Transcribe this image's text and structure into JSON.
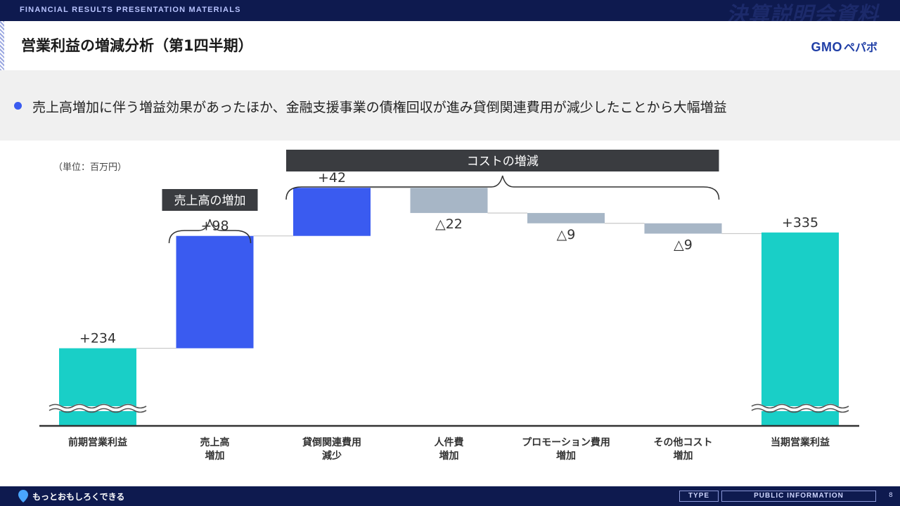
{
  "header": {
    "tag": "FINANCIAL RESULTS PRESENTATION MATERIALS",
    "mark": "決算説明会資料"
  },
  "title": "営業利益の増減分析（第1四半期）",
  "brand": {
    "gmo": "GMO",
    "pepabo": "ペパボ"
  },
  "summary": "売上高増加に伴う増益効果があったほか、金融支援事業の債権回収が進み貸倒関連費用が減少したことから大幅増益",
  "footer": {
    "slogan": "もっとおもしろくできる",
    "type": "TYPE",
    "info": "PUBLIC INFORMATION",
    "page": "8"
  },
  "colors": {
    "teal": "#19cfc7",
    "blue": "#3a5bf0",
    "grey": "#a7b6c6",
    "dark": "#3a3c40"
  },
  "chart_data": {
    "type": "bar",
    "unit_label": "（単位：百万円）",
    "categories": [
      [
        "前期営業利益"
      ],
      [
        "売上高",
        "増加"
      ],
      [
        "貸倒関連費用",
        "減少"
      ],
      [
        "人件費",
        "増加"
      ],
      [
        "プロモーション費用",
        "増加"
      ],
      [
        "その他コスト",
        "増加"
      ],
      [
        "当期営業利益"
      ]
    ],
    "values": [
      234,
      98,
      42,
      -22,
      -9,
      -9,
      335
    ],
    "labels": [
      "+234",
      "+98",
      "+42",
      "△22",
      "△9",
      "△9",
      "+335"
    ],
    "kinds": [
      "total",
      "increase",
      "increase",
      "decrease",
      "decrease",
      "decrease",
      "total"
    ],
    "axis_broken": true,
    "brackets": [
      {
        "label": "売上高の増加",
        "from": 1,
        "to": 1
      },
      {
        "label": "コストの増減",
        "from": 2,
        "to": 5
      }
    ]
  }
}
